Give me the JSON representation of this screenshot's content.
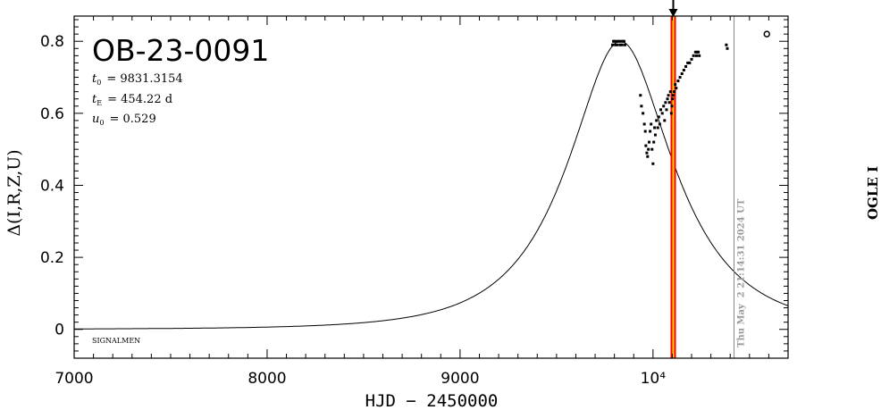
{
  "chart_data": {
    "type": "scatter",
    "title": "OB-23-0091",
    "params": [
      {
        "name_main": "t",
        "name_sub": "0",
        "value": "= 9831.3154"
      },
      {
        "name_main": "t",
        "name_sub": "E",
        "value": "= 454.22 d"
      },
      {
        "name_main": "u",
        "name_sub": "0",
        "value": "= 0.529"
      }
    ],
    "xlabel": "HJD − 2450000",
    "ylabel": "Δ(I,R,Z,U)",
    "right_label": "OGLE I",
    "corner_label": "SIGNALMEN",
    "timestamp": "Thu May  2 21:14:31 2024 UT",
    "xlim": [
      7000,
      10700
    ],
    "ylim": [
      -0.08,
      0.87
    ],
    "x_ticks": [
      {
        "value": 7000,
        "label": "7000"
      },
      {
        "value": 8000,
        "label": "8000"
      },
      {
        "value": 9000,
        "label": "9000"
      },
      {
        "value": 10000,
        "label": "10⁴"
      }
    ],
    "y_ticks": [
      {
        "value": 0,
        "label": "0"
      },
      {
        "value": 0.2,
        "label": "0.2"
      },
      {
        "value": 0.4,
        "label": "0.4"
      },
      {
        "value": 0.6,
        "label": "0.6"
      },
      {
        "value": 0.8,
        "label": "0.8"
      }
    ],
    "model": {
      "t0": 9831.3154,
      "tE": 454.22,
      "u0": 0.529
    },
    "current_time": 10105,
    "timestamp_line": 10420,
    "grid": false,
    "series": [
      {
        "x": [
          9790,
          9795,
          9800,
          9805,
          9810,
          9815,
          9820,
          9825,
          9830,
          9835,
          9840,
          9845,
          9850,
          9855,
          9935,
          9940,
          9948,
          9955,
          9960,
          9963,
          9968,
          9972,
          9976,
          9980,
          9985,
          9990,
          9995,
          10000,
          10004,
          10008,
          10012,
          10018,
          10025,
          10030,
          10035,
          10040,
          10048,
          10055,
          10060,
          10065,
          10070,
          10075,
          10080,
          10085,
          10090,
          10095,
          10098,
          10101,
          10104,
          10110,
          10115,
          10120,
          10130,
          10140,
          10150,
          10160,
          10170,
          10180,
          10190,
          10200,
          10210,
          10220,
          10225,
          10230,
          10235,
          10240,
          10380,
          10385
        ],
        "y": [
          0.79,
          0.8,
          0.8,
          0.79,
          0.8,
          0.79,
          0.8,
          0.8,
          0.79,
          0.8,
          0.79,
          0.8,
          0.8,
          0.79,
          0.65,
          0.62,
          0.6,
          0.57,
          0.55,
          0.51,
          0.49,
          0.48,
          0.5,
          0.52,
          0.55,
          0.57,
          0.5,
          0.46,
          0.52,
          0.56,
          0.54,
          0.58,
          0.56,
          0.59,
          0.57,
          0.61,
          0.6,
          0.62,
          0.58,
          0.63,
          0.61,
          0.64,
          0.65,
          0.63,
          0.66,
          0.6,
          0.62,
          0.64,
          0.65,
          0.66,
          0.68,
          0.67,
          0.69,
          0.7,
          0.71,
          0.72,
          0.73,
          0.74,
          0.74,
          0.75,
          0.76,
          0.77,
          0.76,
          0.77,
          0.77,
          0.76,
          0.79,
          0.78
        ]
      },
      {
        "marker": "open-circle",
        "x": [
          10590
        ],
        "y": [
          0.82
        ]
      }
    ]
  },
  "colors": {
    "axes": "#000000",
    "data": "#000000",
    "current_band_outer": "#ff0000",
    "current_band_inner": "#ffd700",
    "timestamp_line": "#888888",
    "timestamp_text": "#999999"
  }
}
